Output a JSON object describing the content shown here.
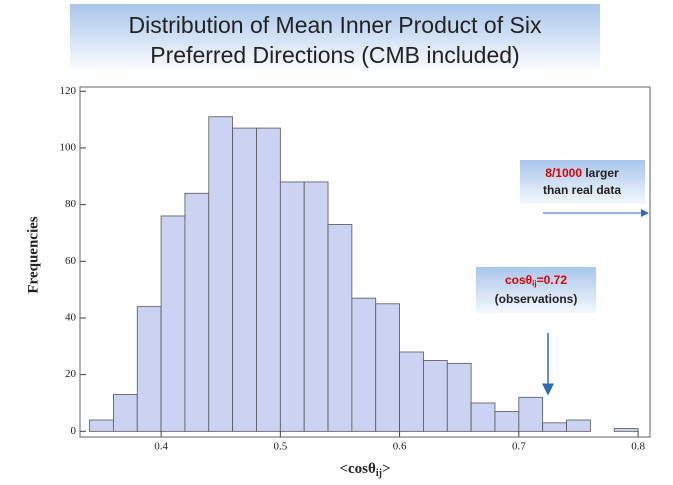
{
  "chart_data": {
    "type": "histogram",
    "title": "Distribution of Mean Inner Product of Six Preferred Directions (CMB included)",
    "xlabel": {
      "main": "<cosθ",
      "sub": "ij",
      "end": ">"
    },
    "ylabel": "Frequencies",
    "bins": [
      0.34,
      0.36,
      0.38,
      0.4,
      0.42,
      0.44,
      0.46,
      0.48,
      0.5,
      0.52,
      0.54,
      0.56,
      0.58,
      0.6,
      0.62,
      0.64,
      0.66,
      0.68,
      0.7,
      0.72,
      0.74,
      0.76,
      0.78,
      0.8
    ],
    "values": [
      4,
      13,
      44,
      76,
      84,
      111,
      107,
      107,
      88,
      88,
      73,
      47,
      45,
      28,
      25,
      24,
      10,
      7,
      12,
      3,
      4,
      0,
      1
    ],
    "color": "#ccd3f2",
    "xlim": [
      0.332,
      0.81
    ],
    "ylim": [
      -2,
      121.5
    ],
    "xticks": [
      0.4,
      0.5,
      0.6,
      0.7,
      0.8
    ],
    "yticks": [
      0,
      20,
      40,
      60,
      80,
      100,
      120
    ],
    "annotations": [
      {
        "highlight": "8/1000",
        "text1": "larger",
        "text2": "than real data"
      },
      {
        "main": "cosθ",
        "sub": "ij",
        "value": "=0.72",
        "text2": "(observations)"
      }
    ]
  }
}
